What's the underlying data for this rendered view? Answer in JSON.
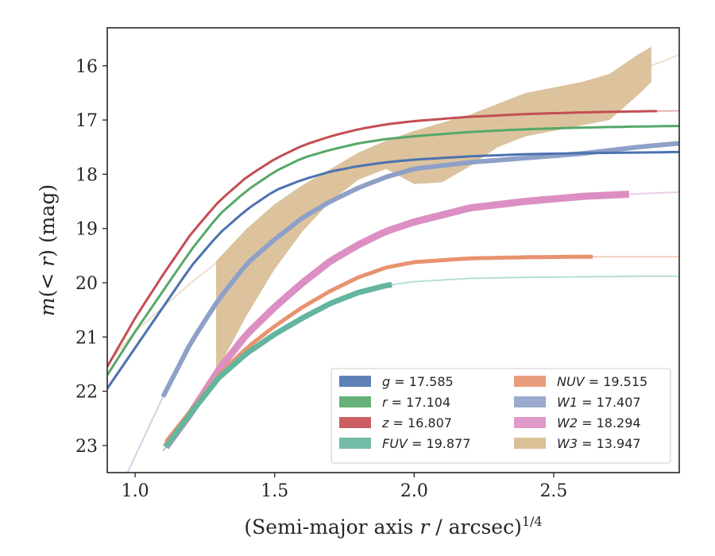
{
  "chart_data": {
    "type": "area",
    "xlabel": "(Semi-major axis r / arcsec)^1/4",
    "ylabel": "m(< r) (mag)",
    "xlim": [
      0.9,
      2.95
    ],
    "ylim": [
      23.5,
      15.3
    ],
    "y_inverted": true,
    "x_ticks": [
      {
        "v": 1.0,
        "label": "1.0"
      },
      {
        "v": 1.5,
        "label": "1.5"
      },
      {
        "v": 2.0,
        "label": "2.0"
      },
      {
        "v": 2.5,
        "label": "2.5"
      }
    ],
    "y_ticks": [
      {
        "v": 16,
        "label": "16"
      },
      {
        "v": 17,
        "label": "17"
      },
      {
        "v": 18,
        "label": "18"
      },
      {
        "v": 19,
        "label": "19"
      },
      {
        "v": 20,
        "label": "20"
      },
      {
        "v": 21,
        "label": "21"
      },
      {
        "v": 22,
        "label": "22"
      },
      {
        "v": 23,
        "label": "23"
      }
    ],
    "legend": {
      "placement": "lower-right",
      "columns": 2
    },
    "series": [
      {
        "name": "g",
        "label": "g = 17.585",
        "color": "#4c72b0",
        "model": [
          [
            0.9,
            21.95
          ],
          [
            1.0,
            21.2
          ],
          [
            1.1,
            20.45
          ],
          [
            1.2,
            19.7
          ],
          [
            1.3,
            19.1
          ],
          [
            1.4,
            18.65
          ],
          [
            1.5,
            18.3
          ],
          [
            1.6,
            18.1
          ],
          [
            1.7,
            17.95
          ],
          [
            1.8,
            17.85
          ],
          [
            1.9,
            17.78
          ],
          [
            2.0,
            17.73
          ],
          [
            2.2,
            17.67
          ],
          [
            2.4,
            17.63
          ],
          [
            2.6,
            17.61
          ],
          [
            2.8,
            17.6
          ],
          [
            2.95,
            17.59
          ]
        ],
        "data_x": [
          0.9,
          2.95
        ]
      },
      {
        "name": "r",
        "label": "r = 17.104",
        "color": "#55a868",
        "model": [
          [
            0.9,
            21.7
          ],
          [
            1.0,
            20.9
          ],
          [
            1.1,
            20.15
          ],
          [
            1.2,
            19.4
          ],
          [
            1.3,
            18.75
          ],
          [
            1.4,
            18.3
          ],
          [
            1.5,
            17.95
          ],
          [
            1.6,
            17.7
          ],
          [
            1.7,
            17.55
          ],
          [
            1.8,
            17.43
          ],
          [
            1.9,
            17.35
          ],
          [
            2.0,
            17.3
          ],
          [
            2.2,
            17.22
          ],
          [
            2.4,
            17.17
          ],
          [
            2.6,
            17.14
          ],
          [
            2.8,
            17.12
          ],
          [
            2.95,
            17.11
          ]
        ],
        "data_x": [
          0.9,
          2.95
        ]
      },
      {
        "name": "z",
        "label": "z = 16.807",
        "color": "#c44e52",
        "model": [
          [
            0.9,
            21.55
          ],
          [
            1.0,
            20.65
          ],
          [
            1.1,
            19.85
          ],
          [
            1.2,
            19.1
          ],
          [
            1.3,
            18.5
          ],
          [
            1.4,
            18.05
          ],
          [
            1.5,
            17.72
          ],
          [
            1.6,
            17.47
          ],
          [
            1.7,
            17.3
          ],
          [
            1.8,
            17.17
          ],
          [
            1.9,
            17.08
          ],
          [
            2.0,
            17.02
          ],
          [
            2.2,
            16.94
          ],
          [
            2.4,
            16.89
          ],
          [
            2.6,
            16.86
          ],
          [
            2.8,
            16.84
          ],
          [
            2.95,
            16.83
          ]
        ],
        "data_x": [
          0.9,
          2.87
        ]
      },
      {
        "name": "FUV",
        "label": "FUV = 19.877",
        "color": "#64b5a0",
        "model": [
          [
            1.1,
            23.1
          ],
          [
            1.2,
            22.4
          ],
          [
            1.3,
            21.75
          ],
          [
            1.4,
            21.3
          ],
          [
            1.5,
            20.95
          ],
          [
            1.6,
            20.65
          ],
          [
            1.7,
            20.38
          ],
          [
            1.8,
            20.18
          ],
          [
            1.9,
            20.05
          ],
          [
            2.0,
            19.98
          ],
          [
            2.2,
            19.92
          ],
          [
            2.4,
            19.9
          ],
          [
            2.6,
            19.89
          ],
          [
            2.8,
            19.88
          ],
          [
            2.95,
            19.88
          ]
        ],
        "data_x": [
          1.11,
          1.92
        ]
      },
      {
        "name": "NUV",
        "label": "NUV = 19.515",
        "color": "#e8926f",
        "model": [
          [
            1.1,
            23.0
          ],
          [
            1.2,
            22.35
          ],
          [
            1.3,
            21.7
          ],
          [
            1.4,
            21.2
          ],
          [
            1.5,
            20.8
          ],
          [
            1.6,
            20.45
          ],
          [
            1.7,
            20.15
          ],
          [
            1.8,
            19.9
          ],
          [
            1.9,
            19.72
          ],
          [
            2.0,
            19.62
          ],
          [
            2.2,
            19.55
          ],
          [
            2.4,
            19.53
          ],
          [
            2.6,
            19.52
          ],
          [
            2.8,
            19.52
          ],
          [
            2.95,
            19.52
          ]
        ],
        "data_x": [
          1.11,
          2.64
        ]
      },
      {
        "name": "W1",
        "label": "W1 = 17.407",
        "color": "#8fa0c8",
        "model": [
          [
            0.9,
            24.3
          ],
          [
            1.0,
            23.2
          ],
          [
            1.1,
            22.1
          ],
          [
            1.2,
            21.1
          ],
          [
            1.3,
            20.3
          ],
          [
            1.4,
            19.65
          ],
          [
            1.5,
            19.2
          ],
          [
            1.6,
            18.8
          ],
          [
            1.7,
            18.5
          ],
          [
            1.8,
            18.25
          ],
          [
            1.9,
            18.05
          ],
          [
            2.0,
            17.9
          ],
          [
            2.2,
            17.78
          ],
          [
            2.4,
            17.7
          ],
          [
            2.6,
            17.62
          ],
          [
            2.8,
            17.5
          ],
          [
            2.95,
            17.43
          ]
        ],
        "data_x": [
          1.1,
          2.95
        ]
      },
      {
        "name": "W2",
        "label": "W2 = 18.294",
        "color": "#dc8fc3",
        "model": [
          [
            1.1,
            23.1
          ],
          [
            1.2,
            22.4
          ],
          [
            1.3,
            21.6
          ],
          [
            1.4,
            20.95
          ],
          [
            1.5,
            20.45
          ],
          [
            1.6,
            20.0
          ],
          [
            1.7,
            19.6
          ],
          [
            1.8,
            19.3
          ],
          [
            1.9,
            19.05
          ],
          [
            2.0,
            18.88
          ],
          [
            2.2,
            18.62
          ],
          [
            2.4,
            18.5
          ],
          [
            2.6,
            18.41
          ],
          [
            2.8,
            18.36
          ],
          [
            2.95,
            18.33
          ]
        ],
        "data_x": [
          1.11,
          2.77
        ]
      },
      {
        "name": "W3",
        "label": "W3 = 13.947",
        "color": "#d6b98c",
        "model": [
          [
            0.9,
            21.5
          ],
          [
            1.0,
            20.9
          ],
          [
            1.2,
            20.0
          ],
          [
            1.4,
            19.2
          ],
          [
            1.6,
            18.55
          ],
          [
            1.8,
            18.0
          ],
          [
            2.0,
            17.6
          ],
          [
            2.2,
            17.2
          ],
          [
            2.4,
            16.85
          ],
          [
            2.6,
            16.5
          ],
          [
            2.8,
            16.1
          ],
          [
            2.95,
            15.8
          ]
        ],
        "band_x": [
          1.29,
          1.4,
          1.5,
          1.6,
          1.7,
          1.8,
          1.9,
          2.0,
          2.1,
          2.2,
          2.3,
          2.4,
          2.5,
          2.6,
          2.7,
          2.8,
          2.85
        ],
        "band_upper": [
          19.6,
          19.0,
          18.55,
          18.2,
          17.9,
          17.6,
          17.38,
          17.2,
          17.05,
          16.9,
          16.7,
          16.5,
          16.4,
          16.3,
          16.15,
          15.8,
          15.65
        ],
        "band_lower": [
          21.65,
          20.6,
          19.75,
          19.05,
          18.5,
          18.1,
          17.9,
          18.18,
          18.15,
          17.85,
          17.5,
          17.3,
          17.2,
          17.1,
          17.0,
          16.55,
          16.3
        ]
      }
    ]
  }
}
